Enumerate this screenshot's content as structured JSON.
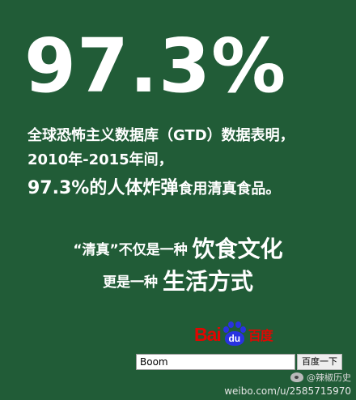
{
  "headline": {
    "percent": "97.3%"
  },
  "body": {
    "line1": "全球恐怖主义数据库（GTD）数据表明，",
    "line2": "2010年-2015年间，",
    "line3_highlight": "97.3%的人体炸弹",
    "line3_rest": "食用清真食品。"
  },
  "slogan": {
    "line1_prefix": "“清真”不仅是一种",
    "line1_emphasis": "饮食文化",
    "line2_prefix": "更是一种",
    "line2_emphasis": "生活方式"
  },
  "baidu": {
    "logo_bai": "Bai",
    "logo_du": "du",
    "logo_cn": "百度",
    "search_value": "Boom",
    "search_button": "百度一下",
    "brand_color": "#e10601",
    "paw_color": "#2932e1"
  },
  "watermark": {
    "name": "@辣椒历史",
    "url": "weibo.com/u/2585715970"
  },
  "colors": {
    "background": "#215c37",
    "text": "#ffffff"
  }
}
